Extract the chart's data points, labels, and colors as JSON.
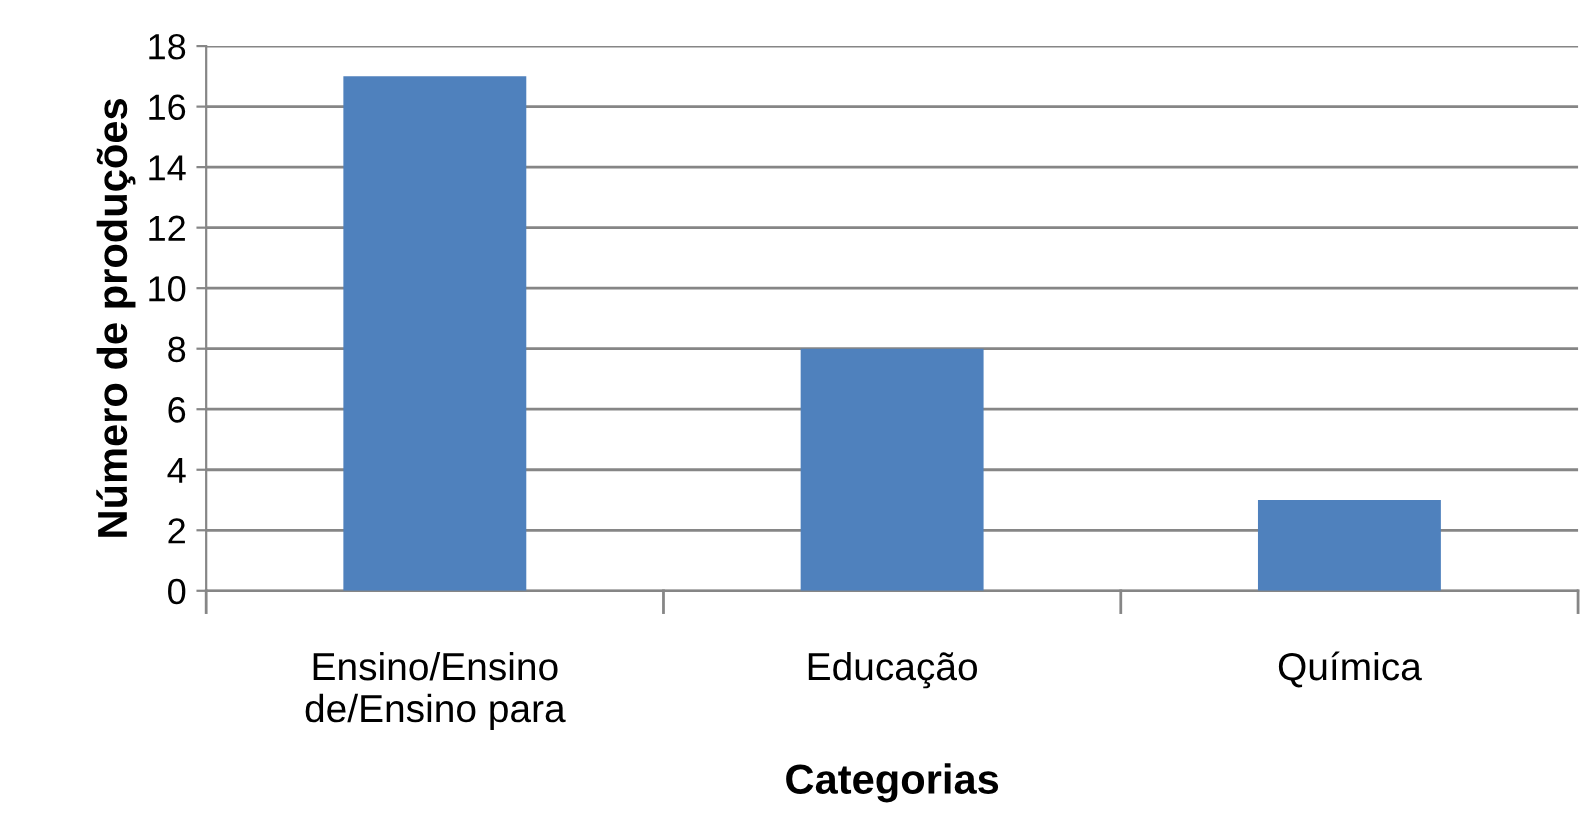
{
  "chart_data": {
    "type": "bar",
    "xlabel": "Categorias",
    "ylabel": "Número de produções",
    "categories": [
      "Ensino/Ensino\nde/Ensino para",
      "Educação",
      "Química"
    ],
    "values": [
      17,
      8,
      3
    ],
    "color": "#4f81bd",
    "ylim": [
      0,
      18
    ],
    "yticks": [
      0,
      2,
      4,
      6,
      8,
      10,
      12,
      14,
      16,
      18
    ],
    "grid": "y",
    "legend": false
  }
}
